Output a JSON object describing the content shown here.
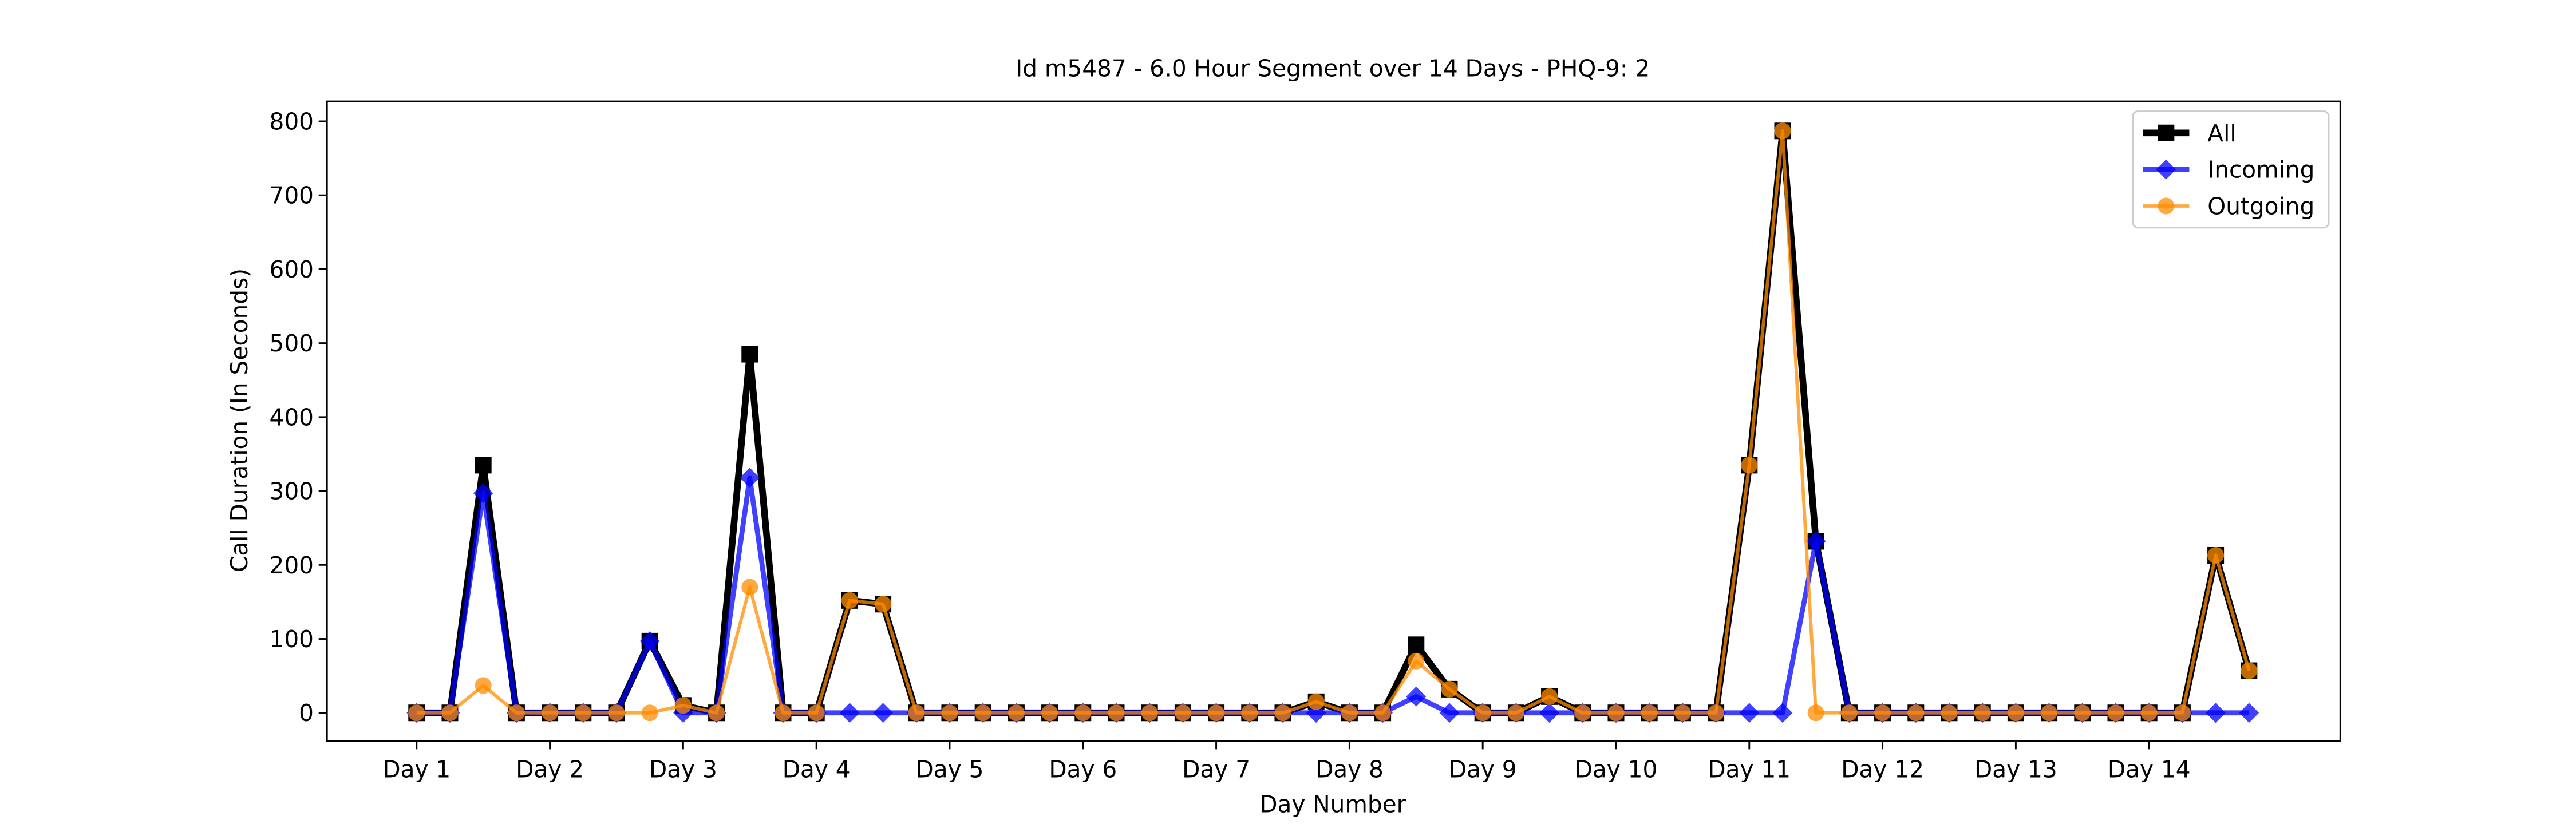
{
  "chart_data": {
    "type": "line",
    "title": "Id m5487 - 6.0 Hour Segment over 14 Days - PHQ-9: 2",
    "xlabel": "Day Number",
    "ylabel": "Call Duration (In Seconds)",
    "categories": [
      "Day 1",
      null,
      null,
      null,
      "Day 2",
      null,
      null,
      null,
      "Day 3",
      null,
      null,
      null,
      "Day 4",
      null,
      null,
      null,
      "Day 5",
      null,
      null,
      null,
      "Day 6",
      null,
      null,
      null,
      "Day 7",
      null,
      null,
      null,
      "Day 8",
      null,
      null,
      null,
      "Day 9",
      null,
      null,
      null,
      "Day 10",
      null,
      null,
      null,
      "Day 11",
      null,
      null,
      null,
      "Day 12",
      null,
      null,
      null,
      "Day 13",
      null,
      null,
      null,
      "Day 14",
      null,
      null,
      null
    ],
    "series": [
      {
        "name": "All",
        "color": "#000000",
        "marker": "square",
        "values": [
          0,
          0,
          335,
          0,
          0,
          0,
          0,
          97,
          10,
          0,
          485,
          0,
          0,
          152,
          147,
          0,
          0,
          0,
          0,
          0,
          0,
          0,
          0,
          0,
          0,
          0,
          0,
          15,
          0,
          0,
          92,
          32,
          0,
          0,
          22,
          0,
          0,
          0,
          0,
          0,
          335,
          787,
          232,
          0,
          0,
          0,
          0,
          0,
          0,
          0,
          0,
          0,
          0,
          0,
          213,
          57
        ]
      },
      {
        "name": "Incoming",
        "color": "#0000ff",
        "marker": "diamond",
        "values": [
          0,
          0,
          297,
          0,
          0,
          0,
          0,
          97,
          0,
          0,
          318,
          0,
          0,
          0,
          0,
          0,
          0,
          0,
          0,
          0,
          0,
          0,
          0,
          0,
          0,
          0,
          0,
          0,
          0,
          0,
          22,
          0,
          0,
          0,
          0,
          0,
          0,
          0,
          0,
          0,
          0,
          0,
          232,
          0,
          0,
          0,
          0,
          0,
          0,
          0,
          0,
          0,
          0,
          0,
          0,
          0
        ]
      },
      {
        "name": "Outgoing",
        "color": "#ff8c00",
        "marker": "circle",
        "values": [
          0,
          0,
          37,
          0,
          0,
          0,
          0,
          0,
          10,
          0,
          170,
          0,
          0,
          152,
          147,
          0,
          0,
          0,
          0,
          0,
          0,
          0,
          0,
          0,
          0,
          0,
          0,
          15,
          0,
          0,
          70,
          32,
          0,
          0,
          22,
          0,
          0,
          0,
          0,
          0,
          335,
          787,
          0,
          0,
          0,
          0,
          0,
          0,
          0,
          0,
          0,
          0,
          0,
          0,
          213,
          57
        ]
      }
    ],
    "ylim": [
      -38,
      827
    ],
    "yticks": [
      0,
      100,
      200,
      300,
      400,
      500,
      600,
      700,
      800
    ],
    "legend": "upper right"
  }
}
